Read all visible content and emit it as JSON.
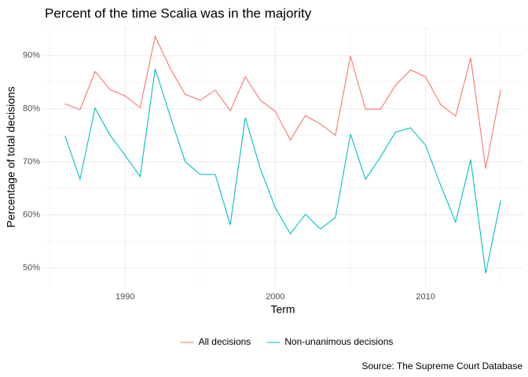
{
  "chart_data": {
    "type": "line",
    "title": "Percent of the time Scalia was in the majority",
    "x_label": "Term",
    "y_label": "Percentage of total decisions",
    "caption": "Source: The Supreme Court Database",
    "x": [
      1986,
      1987,
      1988,
      1989,
      1990,
      1991,
      1992,
      1993,
      1994,
      1995,
      1996,
      1997,
      1998,
      1999,
      2000,
      2001,
      2002,
      2003,
      2004,
      2005,
      2006,
      2007,
      2008,
      2009,
      2010,
      2011,
      2012,
      2013,
      2014,
      2015
    ],
    "series": [
      {
        "name": "All decisions",
        "color": "#F8766D",
        "values": [
          80.9,
          79.8,
          87.0,
          83.6,
          82.4,
          80.2,
          93.6,
          87.6,
          82.7,
          81.6,
          83.5,
          79.6,
          86.0,
          81.6,
          79.5,
          74.1,
          78.7,
          77.1,
          75.0,
          89.9,
          79.9,
          79.9,
          84.4,
          87.3,
          86.0,
          80.8,
          78.6,
          89.6,
          68.7,
          83.6
        ]
      },
      {
        "name": "Non-unanimous decisions",
        "color": "#00BFC4",
        "values": [
          74.9,
          66.7,
          80.1,
          75.0,
          71.2,
          67.2,
          87.5,
          78.6,
          70.0,
          67.6,
          67.6,
          58.1,
          78.3,
          68.7,
          61.3,
          56.4,
          60.1,
          57.3,
          59.5,
          75.2,
          66.7,
          70.9,
          75.6,
          76.4,
          73.1,
          65.6,
          58.6,
          70.4,
          49.0,
          62.7
        ]
      }
    ],
    "xlim": [
      1984.55,
      2016.45
    ],
    "xticks": [
      1990,
      2000,
      2010
    ],
    "ylim": [
      46.3,
      95.6
    ],
    "yticks": [
      {
        "value": 50,
        "label": "50%"
      },
      {
        "value": 60,
        "label": "60%"
      },
      {
        "value": 70,
        "label": "70%"
      },
      {
        "value": 80,
        "label": "80%"
      },
      {
        "value": 90,
        "label": "90%"
      }
    ],
    "grid": true,
    "legend_position": "bottom"
  }
}
